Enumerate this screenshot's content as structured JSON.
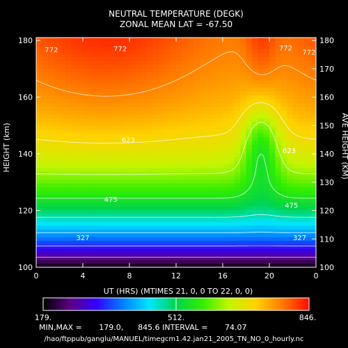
{
  "chart_data": {
    "type": "heatmap",
    "title": "NEUTRAL TEMPERATURE (DEGK)",
    "subtitle": "ZONAL MEAN   LAT = -67.50",
    "xlabel": "UT (HRS)  (MTIMES  21,  0,  0 TO  22,  0,  0)",
    "ylabel": "HEIGHT (km)",
    "ylabel_right": "AVE HEIGHT (KM)",
    "x_ticks": [
      "0",
      "4",
      "8",
      "12",
      "16",
      "20",
      "0"
    ],
    "x_range": [
      0,
      24
    ],
    "y_range": [
      100,
      181
    ],
    "y_ticks": [
      100,
      120,
      140,
      160,
      180
    ],
    "y_ticks_right": [
      100,
      110,
      120,
      130,
      140,
      150,
      160,
      170,
      180
    ],
    "z_range": [
      179.0,
      845.6
    ],
    "contour_interval": 74.07,
    "contour_labels": [
      {
        "value": "772",
        "x": 1.3,
        "y": 176.8
      },
      {
        "value": "772",
        "x": 7.2,
        "y": 177.2
      },
      {
        "value": "772",
        "x": 21.4,
        "y": 177.5
      },
      {
        "value": "772",
        "x": 23.4,
        "y": 176.0
      },
      {
        "value": "623",
        "x": 7.9,
        "y": 145.1
      },
      {
        "value": "623",
        "x": 21.7,
        "y": 141.2
      },
      {
        "value": "475",
        "x": 6.4,
        "y": 124.0
      },
      {
        "value": "475",
        "x": 21.9,
        "y": 122.0
      },
      {
        "value": "327",
        "x": 4.0,
        "y": 110.5
      },
      {
        "value": "327",
        "x": 22.6,
        "y": 110.5
      }
    ],
    "colorbar": {
      "min_label": "179.",
      "mid_label": "512.",
      "max_label": "846."
    },
    "stats": "MIN,MAX =       179.0,      845.6 INTERVAL =       74.07",
    "file_path": "/hao/ftppub/ganglu/MANUEL/timegcm1.42.jan21_2005_TN_NO_0_hourly.nc"
  }
}
